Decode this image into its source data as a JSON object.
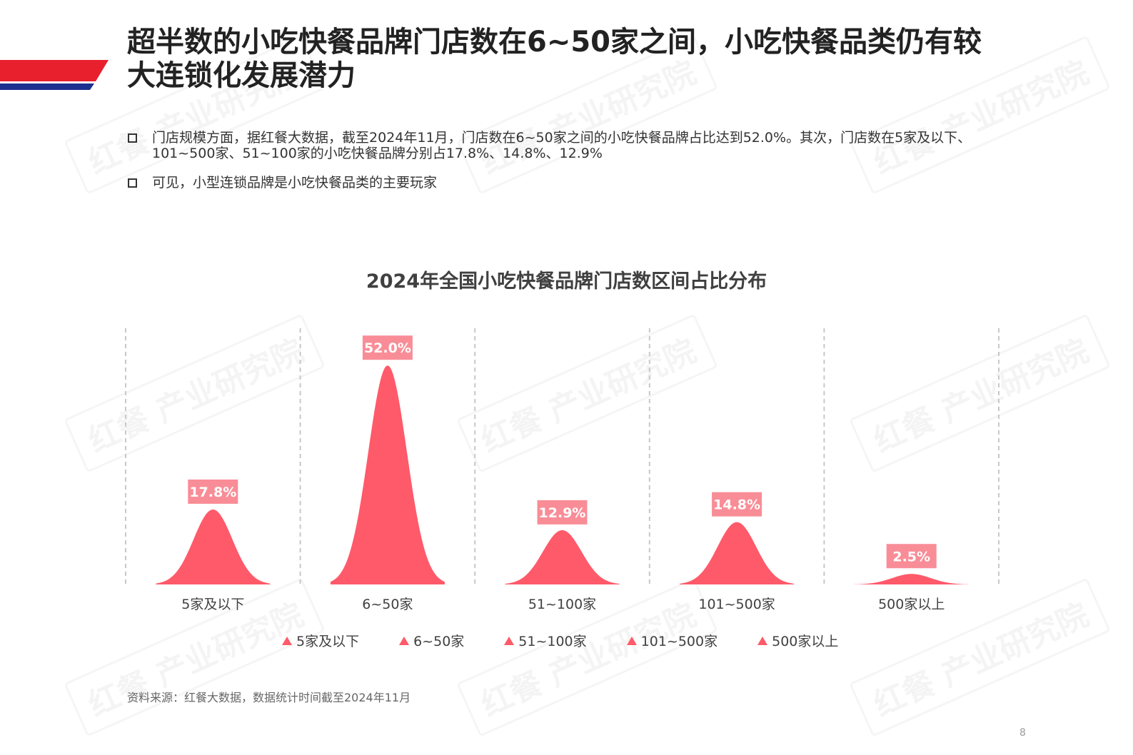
{
  "header": {
    "title_line1": "超半数的小吃快餐品牌门店数在6~50家之间，小吃快餐品类仍有较",
    "title_line2": "大连锁化发展潜力"
  },
  "bullets": [
    "门店规模方面，据红餐大数据，截至2024年11月，门店数在6~50家之间的小吃快餐品牌占比达到52.0%。其次，门店数在5家及以下、101~500家、51~100家的小吃快餐品牌分别占17.8%、14.8%、12.9%",
    "可见，小型连锁品牌是小吃快餐品类的主要玩家"
  ],
  "chart_data": {
    "type": "area",
    "title": "2024年全国小吃快餐品牌门店数区间占比分布",
    "categories": [
      "5家及以下",
      "6~50家",
      "51~100家",
      "101~500家",
      "500家以上"
    ],
    "values": [
      17.8,
      52.0,
      12.9,
      14.8,
      2.5
    ],
    "value_labels": [
      "17.8%",
      "52.0%",
      "12.9%",
      "14.8%",
      "2.5%"
    ],
    "legend": [
      "5家及以下",
      "6~50家",
      "51~100家",
      "101~500家",
      "500家以上"
    ],
    "legend_position": "bottom",
    "grid": "vertical dashed separators",
    "color": "#ff5a6a",
    "label_bg_color": "#f98d97"
  },
  "watermark_text": "红餐 产业研究院",
  "source": "资料来源：红餐大数据，数据统计时间截至2024年11月",
  "page_number": "8",
  "colors": {
    "banner_red": "#e8202e",
    "banner_blue": "#1d2f8f"
  }
}
